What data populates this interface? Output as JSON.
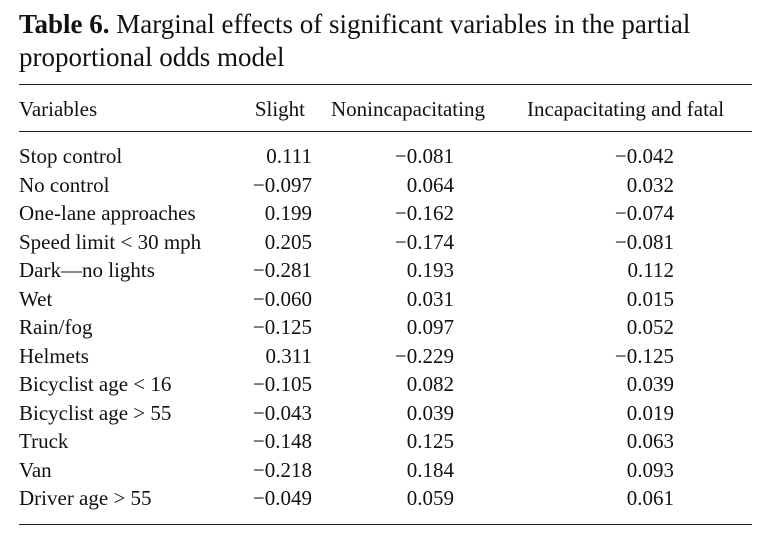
{
  "table": {
    "caption_label": "Table 6.",
    "caption_text": " Marginal effects of significant variables in the partial proportional odds model",
    "headers": [
      "Variables",
      "Slight",
      "Nonincapacitating",
      "Incapacitating and fatal"
    ],
    "rows": [
      [
        "Stop control",
        "0.111",
        "−0.081",
        "−0.042"
      ],
      [
        "No control",
        "−0.097",
        "0.064",
        "0.032"
      ],
      [
        "One-lane approaches",
        "0.199",
        "−0.162",
        "−0.074"
      ],
      [
        "Speed limit < 30 mph",
        "0.205",
        "−0.174",
        "−0.081"
      ],
      [
        "Dark—no lights",
        "−0.281",
        "0.193",
        "0.112"
      ],
      [
        "Wet",
        "−0.060",
        "0.031",
        "0.015"
      ],
      [
        "Rain/fog",
        "−0.125",
        "0.097",
        "0.052"
      ],
      [
        "Helmets",
        "0.311",
        "−0.229",
        "−0.125"
      ],
      [
        "Bicyclist age < 16",
        "−0.105",
        "0.082",
        "0.039"
      ],
      [
        "Bicyclist age > 55",
        "−0.043",
        "0.039",
        "0.019"
      ],
      [
        "Truck",
        "−0.148",
        "0.125",
        "0.063"
      ],
      [
        "Van",
        "−0.218",
        "0.184",
        "0.093"
      ],
      [
        "Driver age > 55",
        "−0.049",
        "0.059",
        "0.061"
      ]
    ]
  }
}
